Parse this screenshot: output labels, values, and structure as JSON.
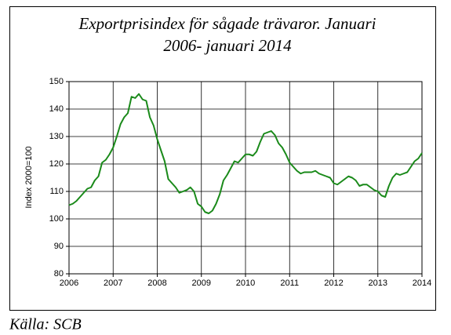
{
  "chart_data": {
    "type": "line",
    "title": [
      "Exportprisindex för sågade trävaror. Januari",
      "2006- januari 2014"
    ],
    "ylabel": "Index 2000=100",
    "source": "Källa: SCB",
    "color": "#1a8a1a",
    "grid": true,
    "xlim": [
      2006,
      2014
    ],
    "xticks": [
      2006,
      2007,
      2008,
      2009,
      2010,
      2011,
      2012,
      2013,
      2014
    ],
    "ylim": [
      80,
      150
    ],
    "yticks": [
      80,
      90,
      100,
      110,
      120,
      130,
      140,
      150
    ],
    "x": [
      2006,
      2006.083,
      2006.167,
      2006.25,
      2006.333,
      2006.417,
      2006.5,
      2006.583,
      2006.667,
      2006.75,
      2006.833,
      2006.917,
      2007,
      2007.083,
      2007.167,
      2007.25,
      2007.333,
      2007.417,
      2007.5,
      2007.583,
      2007.667,
      2007.75,
      2007.833,
      2007.917,
      2008,
      2008.083,
      2008.167,
      2008.25,
      2008.333,
      2008.417,
      2008.5,
      2008.583,
      2008.667,
      2008.75,
      2008.833,
      2008.917,
      2009,
      2009.083,
      2009.167,
      2009.25,
      2009.333,
      2009.417,
      2009.5,
      2009.583,
      2009.667,
      2009.75,
      2009.833,
      2009.917,
      2010,
      2010.083,
      2010.167,
      2010.25,
      2010.333,
      2010.417,
      2010.5,
      2010.583,
      2010.667,
      2010.75,
      2010.833,
      2010.917,
      2011,
      2011.083,
      2011.167,
      2011.25,
      2011.333,
      2011.417,
      2011.5,
      2011.583,
      2011.667,
      2011.75,
      2011.833,
      2011.917,
      2012,
      2012.083,
      2012.167,
      2012.25,
      2012.333,
      2012.417,
      2012.5,
      2012.583,
      2012.667,
      2012.75,
      2012.833,
      2012.917,
      2013,
      2013.083,
      2013.167,
      2013.25,
      2013.333,
      2013.417,
      2013.5,
      2013.583,
      2013.667,
      2013.75,
      2013.833,
      2013.917,
      2014
    ],
    "values": [
      105,
      105.5,
      106.5,
      108,
      109.5,
      111,
      111.5,
      114,
      115.5,
      120.5,
      121.5,
      123.5,
      126,
      130,
      134.5,
      137,
      138.5,
      144.5,
      144,
      145.5,
      143.5,
      143,
      137,
      134,
      129,
      125,
      121,
      114.5,
      113,
      111.5,
      109.5,
      110,
      110.5,
      111.5,
      110,
      105.5,
      104.5,
      102.5,
      102,
      103,
      105.5,
      109,
      114,
      116,
      118.5,
      121,
      120.5,
      122,
      123.5,
      123.5,
      123,
      124.5,
      128,
      131,
      131.5,
      132,
      130.5,
      127.5,
      126,
      123.5,
      120.5,
      119,
      117.5,
      116.5,
      117,
      117,
      117,
      117.5,
      116.5,
      116,
      115.5,
      115,
      113,
      112.5,
      113.5,
      114.5,
      115.5,
      115,
      114,
      112,
      112.5,
      112.5,
      111.5,
      110.5,
      110,
      108.5,
      108,
      112,
      115,
      116.5,
      116,
      116.5,
      117,
      119,
      121,
      122,
      124
    ]
  }
}
